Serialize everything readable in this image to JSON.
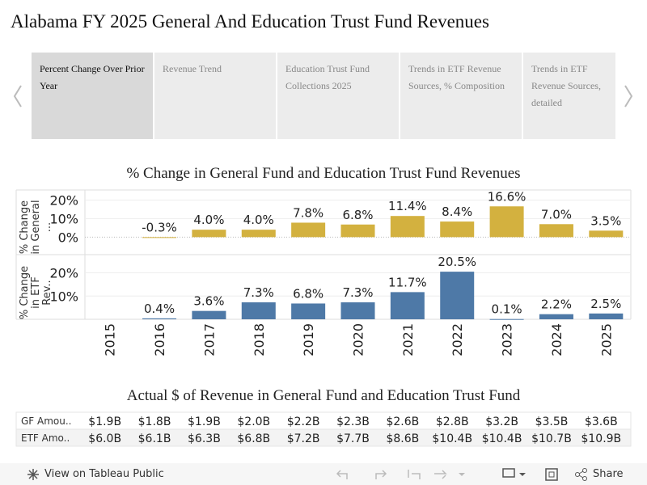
{
  "header": {
    "title": "Alabama FY 2025 General And Education Trust Fund Revenues"
  },
  "tabs": [
    "Percent Change Over Prior Year",
    "Revenue Trend",
    "Education Trust Fund Collections 2025",
    "Trends in ETF Revenue Sources, % Composition",
    "Trends in ETF Revenue Sources, detailed"
  ],
  "chart_data": {
    "type": "bar",
    "title": "% Change in General Fund and Education Trust Fund Revenues",
    "categories": [
      "2015",
      "2016",
      "2017",
      "2018",
      "2019",
      "2020",
      "2021",
      "2022",
      "2023",
      "2024",
      "2025"
    ],
    "series": [
      {
        "name": "% Change in General ...",
        "color": "#d3b13f",
        "values": [
          null,
          -0.3,
          4.0,
          4.0,
          7.8,
          6.8,
          11.4,
          8.4,
          16.6,
          7.0,
          3.5
        ],
        "value_labels": [
          null,
          "-0.3%",
          "4.0%",
          "4.0%",
          "7.8%",
          "6.8%",
          "11.4%",
          "8.4%",
          "16.6%",
          "7.0%",
          "3.5%"
        ],
        "ylim": [
          -9,
          25
        ],
        "yticks": [
          {
            "value": 0,
            "label": "0%"
          },
          {
            "value": 10,
            "label": "10%"
          },
          {
            "value": 20,
            "label": "20%"
          }
        ]
      },
      {
        "name": "% Change in ETF Rev..",
        "color": "#4e79a7",
        "values": [
          null,
          0.4,
          3.6,
          7.3,
          6.8,
          7.3,
          11.7,
          20.5,
          0.1,
          2.2,
          2.5
        ],
        "value_labels": [
          null,
          "0.4%",
          "3.6%",
          "7.3%",
          "6.8%",
          "7.3%",
          "11.7%",
          "20.5%",
          "0.1%",
          "2.2%",
          "2.5%"
        ],
        "ylim": [
          0,
          27.5
        ],
        "yticks": [
          {
            "value": 10,
            "label": "10%"
          },
          {
            "value": 20,
            "label": "20%"
          }
        ]
      }
    ]
  },
  "table": {
    "title": "Actual $ of Revenue in General Fund and Education Trust Fund",
    "rows": [
      [
        "GF Amou..",
        "$1.9B",
        "$1.8B",
        "$1.9B",
        "$2.0B",
        "$2.2B",
        "$2.3B",
        "$2.6B",
        "$2.8B",
        "$3.2B",
        "$3.5B",
        "$3.6B"
      ],
      [
        "ETF Amo..",
        "$6.0B",
        "$6.1B",
        "$6.3B",
        "$6.8B",
        "$7.2B",
        "$7.7B",
        "$8.6B",
        "$10.4B",
        "$10.4B",
        "$10.7B",
        "$10.9B"
      ]
    ]
  },
  "footer": {
    "view": "View on Tableau Public",
    "share": "Share"
  }
}
